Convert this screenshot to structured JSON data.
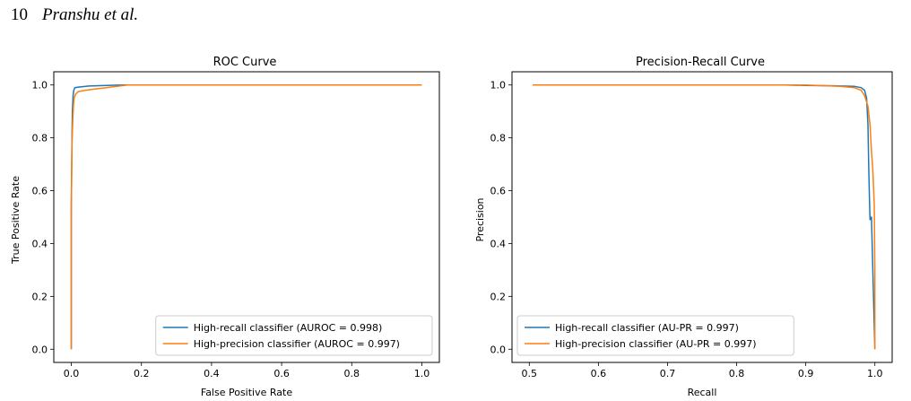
{
  "header": {
    "page_number": "10",
    "authors": "Pranshu et al."
  },
  "colors": {
    "blue": "#1f77b4",
    "orange": "#ff7f0e"
  },
  "chart_data": [
    {
      "type": "line",
      "title": "ROC Curve",
      "xlabel": "False Positive Rate",
      "ylabel": "True Positive Rate",
      "xlim": [
        -0.05,
        1.05
      ],
      "ylim": [
        -0.05,
        1.05
      ],
      "xticks": [
        0.0,
        0.2,
        0.4,
        0.6,
        0.8,
        1.0
      ],
      "yticks": [
        0.0,
        0.2,
        0.4,
        0.6,
        0.8,
        1.0
      ],
      "xtick_labels": [
        "0.0",
        "0.2",
        "0.4",
        "0.6",
        "0.8",
        "1.0"
      ],
      "ytick_labels": [
        "0.0",
        "0.2",
        "0.4",
        "0.6",
        "0.8",
        "1.0"
      ],
      "grid": false,
      "legend_position": "lower-right",
      "series": [
        {
          "name": "High-recall classifier (AUROC = 0.998)",
          "color": "#1f77b4",
          "x": [
            0.0,
            0.0,
            0.002,
            0.003,
            0.005,
            0.007,
            0.01,
            0.02,
            0.05,
            0.1,
            0.15,
            0.3,
            0.6,
            1.0
          ],
          "y": [
            0.0,
            0.55,
            0.8,
            0.9,
            0.96,
            0.98,
            0.99,
            0.992,
            0.996,
            0.998,
            1.0,
            1.0,
            1.0,
            1.0
          ]
        },
        {
          "name": "High-precision classifier (AUROC = 0.997)",
          "color": "#ff7f0e",
          "x": [
            0.0,
            0.0,
            0.002,
            0.004,
            0.006,
            0.008,
            0.012,
            0.02,
            0.04,
            0.07,
            0.1,
            0.13,
            0.16,
            0.3,
            0.6,
            1.0
          ],
          "y": [
            0.0,
            0.5,
            0.78,
            0.86,
            0.92,
            0.95,
            0.965,
            0.975,
            0.98,
            0.985,
            0.99,
            0.995,
            1.0,
            1.0,
            1.0,
            1.0
          ]
        }
      ]
    },
    {
      "type": "line",
      "title": "Precision-Recall Curve",
      "xlabel": "Recall",
      "ylabel": "Precision",
      "xlim": [
        0.475,
        1.025
      ],
      "ylim": [
        -0.05,
        1.05
      ],
      "xticks": [
        0.5,
        0.6,
        0.7,
        0.8,
        0.9,
        1.0
      ],
      "yticks": [
        0.0,
        0.2,
        0.4,
        0.6,
        0.8,
        1.0
      ],
      "xtick_labels": [
        "0.5",
        "0.6",
        "0.7",
        "0.8",
        "0.9",
        "1.0"
      ],
      "ytick_labels": [
        "0.0",
        "0.2",
        "0.4",
        "0.6",
        "0.8",
        "1.0"
      ],
      "grid": false,
      "legend_position": "lower-left",
      "series": [
        {
          "name": "High-recall classifier (AU-PR = 0.997)",
          "color": "#1f77b4",
          "x": [
            0.505,
            0.6,
            0.7,
            0.8,
            0.87,
            0.9,
            0.94,
            0.97,
            0.98,
            0.985,
            0.988,
            0.99,
            0.991,
            0.992,
            0.993,
            0.995,
            1.0
          ],
          "y": [
            1.0,
            1.0,
            1.0,
            1.0,
            1.0,
            0.998,
            0.997,
            0.995,
            0.99,
            0.98,
            0.95,
            0.85,
            0.7,
            0.58,
            0.49,
            0.5,
            0.0
          ]
        },
        {
          "name": "High-precision classifier (AU-PR = 0.997)",
          "color": "#ff7f0e",
          "x": [
            0.505,
            0.6,
            0.7,
            0.8,
            0.9,
            0.95,
            0.97,
            0.98,
            0.985,
            0.99,
            0.993,
            0.995,
            0.997,
            0.999,
            1.0,
            1.0
          ],
          "y": [
            1.0,
            1.0,
            1.0,
            1.0,
            1.0,
            0.995,
            0.99,
            0.98,
            0.96,
            0.92,
            0.85,
            0.75,
            0.68,
            0.55,
            0.3,
            0.0
          ]
        }
      ]
    }
  ]
}
